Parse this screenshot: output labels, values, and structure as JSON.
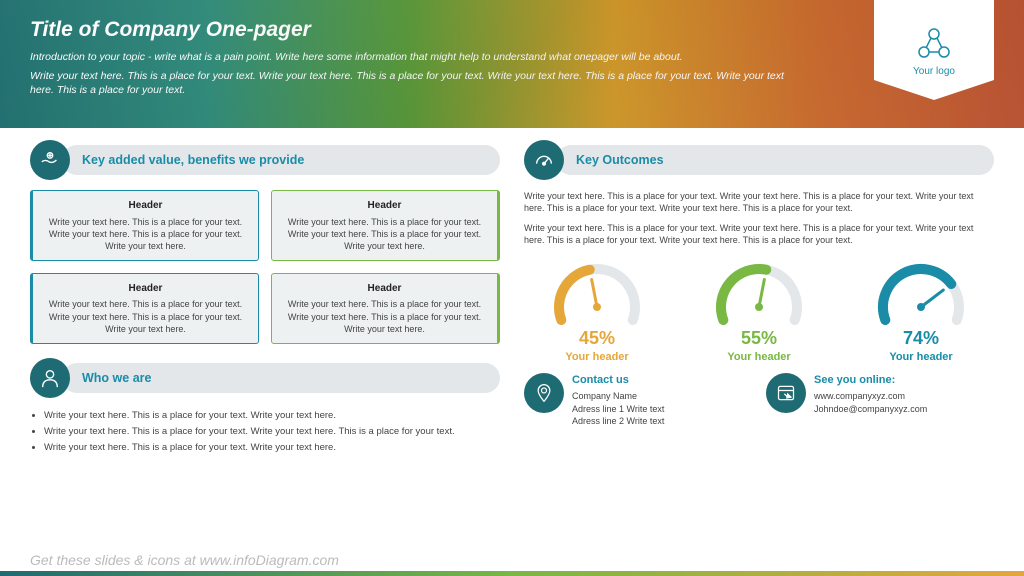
{
  "header": {
    "title": "Title of Company One-pager",
    "intro1": "Introduction to your topic - write what is a pain point. Write here some information that might help to understand what onepager will be about.",
    "intro2": "Write your text here. This is a place for your text. Write your text here. This is a place for your text. Write your text here. This is a place for your text. Write your text here. This is a place for your text.",
    "logo_text": "Your logo"
  },
  "benefits": {
    "title": "Key added value, benefits we provide",
    "boxes": [
      {
        "header": "Header",
        "body": "Write your text here. This is a place for your text. Write your text here. This is a place for your text. Write your text here."
      },
      {
        "header": "Header",
        "body": "Write your text here. This is a place for your text. Write your text here. This is a place for your text. Write your text here."
      },
      {
        "header": "Header",
        "body": "Write your text here. This is a place for your text. Write your text here. This is a place for your text. Write your text here."
      },
      {
        "header": "Header",
        "body": "Write your text here. This is a place for your text. Write your text here. This is a place for your text. Write your text here."
      }
    ]
  },
  "who": {
    "title": "Who we are",
    "items": [
      "Write your text here. This is a place for your text. Write your text here.",
      "Write your text here. This is a place for your text. Write your text here. This is a place for your text.",
      "Write your text here. This is a place for your text. Write your text here."
    ]
  },
  "outcomes": {
    "title": "Key Outcomes",
    "p1": "Write your text here. This is a place for your text. Write your text here. This is a place for your text. Write your text here. This is a place for your text. Write your text here. This is a place for your text.",
    "p2": "Write your text here. This is a place for your text. Write your text here. This is a place for your text. Write your text here. This is a place for your text. Write your text here. This is a place for your text.",
    "gauges": [
      {
        "value": 45,
        "label": "Your header",
        "color": "#e5a63a"
      },
      {
        "value": 55,
        "label": "Your header",
        "color": "#78b843"
      },
      {
        "value": 74,
        "label": "Your header",
        "color": "#1a8ca8"
      }
    ]
  },
  "contact": {
    "title": "Contact us",
    "lines": [
      "Company Name",
      "Adress line 1 Write text",
      "Adress line 2 Write text"
    ]
  },
  "online": {
    "title": "See you online:",
    "lines": [
      "www.companyxyz.com",
      "Johndoe@companyxyz.com"
    ]
  },
  "footer": "Get these slides & icons at www.infoDiagram.com",
  "colors": {
    "teal": "#1e6b73",
    "accent_text": "#1a8ca8",
    "green": "#78b843",
    "orange": "#e5a63a",
    "pill_bg": "#e3e7ea",
    "box_bg": "#edf1f2"
  }
}
